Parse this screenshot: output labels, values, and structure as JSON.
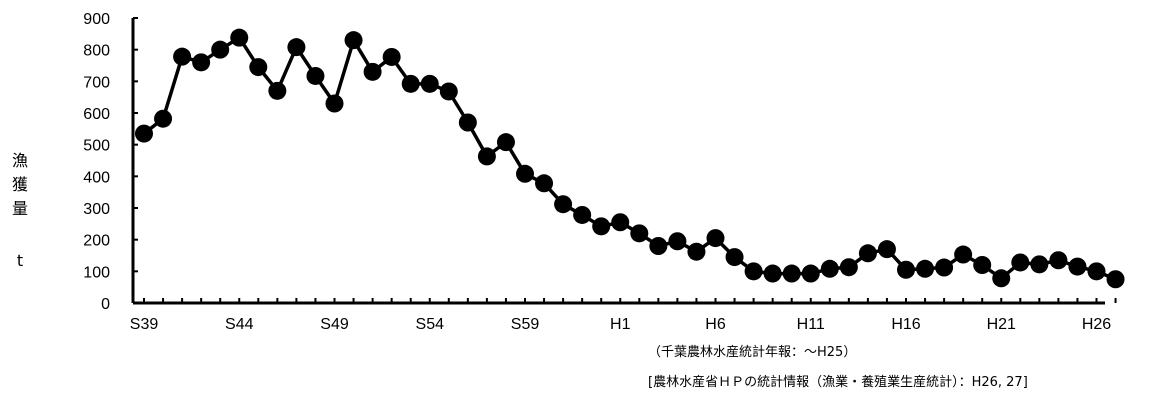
{
  "chart_data": {
    "type": "line",
    "title": "",
    "ylabel_chars": [
      "漁",
      "獲",
      "量"
    ],
    "yunit": "t",
    "ylim": [
      0,
      900
    ],
    "yticks": [
      0,
      100,
      200,
      300,
      400,
      500,
      600,
      700,
      800,
      900
    ],
    "x_tick_labels": [
      "S39",
      "S44",
      "S49",
      "S54",
      "S59",
      "H1",
      "H6",
      "H11",
      "H16",
      "H21",
      "H26"
    ],
    "x_tick_every": 5,
    "grid": false,
    "legend": "none",
    "series": [
      {
        "values": [
          535,
          582,
          778,
          760,
          800,
          838,
          745,
          670,
          808,
          717,
          630,
          830,
          730,
          777,
          692,
          692,
          668,
          570,
          463,
          508,
          408,
          378,
          312,
          278,
          242,
          255,
          220,
          180,
          195,
          162,
          205,
          145,
          100,
          93,
          93,
          93,
          108,
          113,
          157,
          170,
          105,
          108,
          112,
          153,
          120,
          78,
          128,
          122,
          135,
          115,
          100,
          75
        ],
        "color": "#000000"
      }
    ],
    "notes": [
      "（千葉農林水産統計年報：～H25）",
      "[農林水産省ＨＰの統計情報（漁業・養殖業生産統計）：H26, 27]"
    ]
  }
}
